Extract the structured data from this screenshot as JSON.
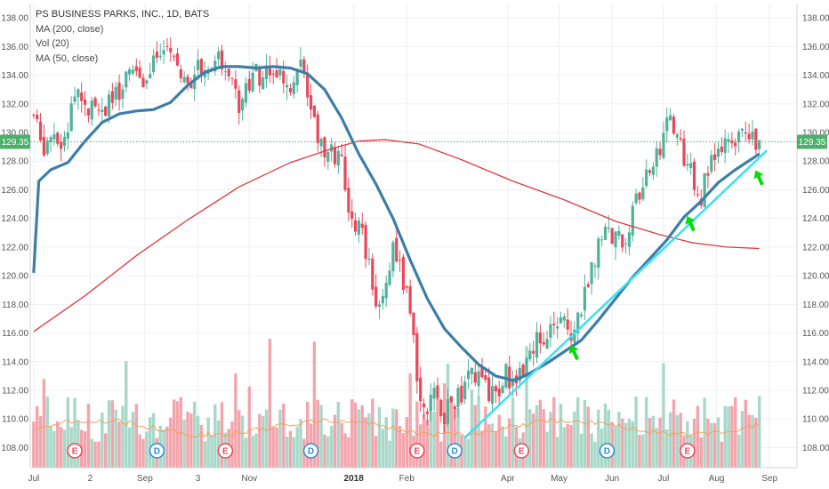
{
  "legend": {
    "title": "PS BUSINESS PARKS, INC., 1D, BATS",
    "ma200": "MA (200, close)",
    "vol": "Vol (20)",
    "ma50": "MA (50, close)"
  },
  "chart_data": {
    "type": "candlestick",
    "y_ticks": [
      "108.00",
      "110.00",
      "112.00",
      "114.00",
      "116.00",
      "118.00",
      "120.00",
      "122.00",
      "124.00",
      "126.00",
      "128.00",
      "130.00",
      "132.00",
      "134.00",
      "136.00",
      "138.00"
    ],
    "y_tick_values": [
      108,
      110,
      112,
      114,
      116,
      118,
      120,
      122,
      124,
      126,
      128,
      130,
      132,
      134,
      136,
      138
    ],
    "ylim": [
      106.6,
      139.0
    ],
    "x_ticks": [
      {
        "label": "Jul",
        "day": 0
      },
      {
        "label": "2",
        "day": 33
      },
      {
        "label": "Sep",
        "day": 65
      },
      {
        "label": "3",
        "day": 96
      },
      {
        "label": "Nov",
        "day": 126
      },
      {
        "label": "2018",
        "day": 187,
        "bold": true
      },
      {
        "label": "Feb",
        "day": 218
      },
      {
        "label": "Apr",
        "day": 277
      },
      {
        "label": "May",
        "day": 307
      },
      {
        "label": "Jun",
        "day": 338
      },
      {
        "label": "Jul",
        "day": 368
      },
      {
        "label": "Aug",
        "day": 399
      },
      {
        "label": "Sep",
        "day": 430
      }
    ],
    "last_price": 129.35,
    "last_price_label": "129.35",
    "close_points": [
      [
        0,
        131.2
      ],
      [
        5,
        129.0
      ],
      [
        10,
        129.6
      ],
      [
        15,
        128.6
      ],
      [
        20,
        130.6
      ],
      [
        25,
        133.2
      ],
      [
        30,
        131.6
      ],
      [
        35,
        132.4
      ],
      [
        40,
        131.2
      ],
      [
        45,
        132.8
      ],
      [
        50,
        132.2
      ],
      [
        55,
        134.0
      ],
      [
        60,
        134.6
      ],
      [
        65,
        133.0
      ],
      [
        70,
        135.8
      ],
      [
        75,
        134.8
      ],
      [
        80,
        136.2
      ],
      [
        85,
        134.4
      ],
      [
        90,
        133.4
      ],
      [
        95,
        134.6
      ],
      [
        100,
        134.2
      ],
      [
        105,
        135.4
      ],
      [
        110,
        134.8
      ],
      [
        115,
        133.8
      ],
      [
        120,
        131.8
      ],
      [
        125,
        133.6
      ],
      [
        130,
        134.2
      ],
      [
        135,
        133.8
      ],
      [
        140,
        134.6
      ],
      [
        145,
        133.4
      ],
      [
        150,
        133.0
      ],
      [
        155,
        135.6
      ],
      [
        160,
        132.2
      ],
      [
        165,
        130.4
      ],
      [
        170,
        128.2
      ],
      [
        175,
        128.6
      ],
      [
        180,
        127.6
      ],
      [
        185,
        123.0
      ],
      [
        190,
        124.4
      ],
      [
        195,
        121.0
      ],
      [
        200,
        118.6
      ],
      [
        205,
        119.0
      ],
      [
        210,
        121.6
      ],
      [
        215,
        120.2
      ],
      [
        220,
        117.4
      ],
      [
        225,
        112.2
      ],
      [
        230,
        110.6
      ],
      [
        235,
        111.6
      ],
      [
        240,
        110.4
      ],
      [
        245,
        111.2
      ],
      [
        250,
        111.8
      ],
      [
        255,
        113.6
      ],
      [
        260,
        112.6
      ],
      [
        265,
        112.0
      ],
      [
        270,
        111.4
      ],
      [
        275,
        113.2
      ],
      [
        280,
        112.6
      ],
      [
        285,
        113.4
      ],
      [
        290,
        114.8
      ],
      [
        295,
        115.8
      ],
      [
        300,
        115.2
      ],
      [
        305,
        116.8
      ],
      [
        310,
        117.0
      ],
      [
        315,
        116.0
      ],
      [
        320,
        117.8
      ],
      [
        325,
        119.6
      ],
      [
        330,
        122.6
      ],
      [
        335,
        123.2
      ],
      [
        340,
        122.6
      ],
      [
        345,
        122.2
      ],
      [
        350,
        124.4
      ],
      [
        355,
        125.8
      ],
      [
        360,
        127.4
      ],
      [
        365,
        128.4
      ],
      [
        370,
        131.6
      ],
      [
        375,
        130.2
      ],
      [
        380,
        128.2
      ],
      [
        385,
        126.8
      ],
      [
        390,
        125.6
      ],
      [
        395,
        127.6
      ],
      [
        400,
        128.2
      ],
      [
        405,
        129.2
      ],
      [
        410,
        128.6
      ],
      [
        415,
        130.6
      ],
      [
        420,
        129.6
      ],
      [
        424,
        129.35
      ]
    ],
    "volume_ylim": [
      106.6,
      115.0
    ],
    "ma200_points": [
      [
        0,
        116.1
      ],
      [
        30,
        118.6
      ],
      [
        60,
        121.4
      ],
      [
        90,
        123.9
      ],
      [
        120,
        126.2
      ],
      [
        150,
        127.9
      ],
      [
        175,
        128.9
      ],
      [
        190,
        129.4
      ],
      [
        205,
        129.5
      ],
      [
        225,
        129.2
      ],
      [
        250,
        128.1
      ],
      [
        280,
        126.6
      ],
      [
        310,
        125.3
      ],
      [
        340,
        123.8
      ],
      [
        365,
        122.9
      ],
      [
        385,
        122.3
      ],
      [
        405,
        122.0
      ],
      [
        424,
        121.9
      ]
    ],
    "ma50_points": [
      [
        0,
        120.2
      ],
      [
        3,
        126.6
      ],
      [
        10,
        127.4
      ],
      [
        20,
        127.9
      ],
      [
        30,
        129.4
      ],
      [
        40,
        130.7
      ],
      [
        50,
        131.3
      ],
      [
        60,
        131.5
      ],
      [
        70,
        131.6
      ],
      [
        80,
        132.1
      ],
      [
        90,
        133.3
      ],
      [
        100,
        134.2
      ],
      [
        110,
        134.6
      ],
      [
        120,
        134.6
      ],
      [
        130,
        134.5
      ],
      [
        140,
        134.6
      ],
      [
        150,
        134.5
      ],
      [
        160,
        134.1
      ],
      [
        170,
        133.0
      ],
      [
        180,
        131.0
      ],
      [
        190,
        128.5
      ],
      [
        200,
        126.4
      ],
      [
        210,
        124.0
      ],
      [
        220,
        121.1
      ],
      [
        230,
        118.4
      ],
      [
        240,
        116.3
      ],
      [
        250,
        115.0
      ],
      [
        260,
        113.8
      ],
      [
        270,
        113.0
      ],
      [
        280,
        112.7
      ],
      [
        285,
        112.9
      ],
      [
        290,
        113.2
      ],
      [
        300,
        113.9
      ],
      [
        310,
        114.7
      ],
      [
        320,
        115.5
      ],
      [
        330,
        116.9
      ],
      [
        340,
        118.4
      ],
      [
        350,
        119.9
      ],
      [
        360,
        121.2
      ],
      [
        370,
        122.5
      ],
      [
        380,
        124.1
      ],
      [
        390,
        125.2
      ],
      [
        400,
        126.5
      ],
      [
        410,
        127.4
      ],
      [
        424,
        128.5
      ]
    ],
    "trendline": [
      [
        252,
        108.7
      ],
      [
        428,
        128.7
      ]
    ],
    "trendline_color": "#40e0f0",
    "events": [
      {
        "day": 24,
        "label": "E",
        "type": "earnings"
      },
      {
        "day": 72,
        "label": "D",
        "type": "dividend"
      },
      {
        "day": 112,
        "label": "E",
        "type": "earnings"
      },
      {
        "day": 162,
        "label": "D",
        "type": "dividend"
      },
      {
        "day": 224,
        "label": "E",
        "type": "earnings"
      },
      {
        "day": 246,
        "label": "D",
        "type": "dividend"
      },
      {
        "day": 285,
        "label": "E",
        "type": "earnings"
      },
      {
        "day": 335,
        "label": "D",
        "type": "dividend"
      },
      {
        "day": 382,
        "label": "E",
        "type": "earnings"
      }
    ],
    "annotations": [
      {
        "type": "up-arrow",
        "day": 316,
        "price": 114.6
      },
      {
        "type": "up-arrow",
        "day": 384,
        "price": 123.6
      },
      {
        "type": "up-arrow",
        "day": 424,
        "price": 126.8
      }
    ],
    "colors": {
      "up": "#4fb29b",
      "down": "#e8485a",
      "vol_up": "#a8d8c8",
      "vol_down": "#f3a5ad",
      "ma200": "#e2383f",
      "ma50": "#3c7ea8",
      "vol_ma": "#f2a15a",
      "price_tag": "#4caf6a",
      "arrow": "#00e000",
      "grid": "#eef0f4"
    }
  }
}
